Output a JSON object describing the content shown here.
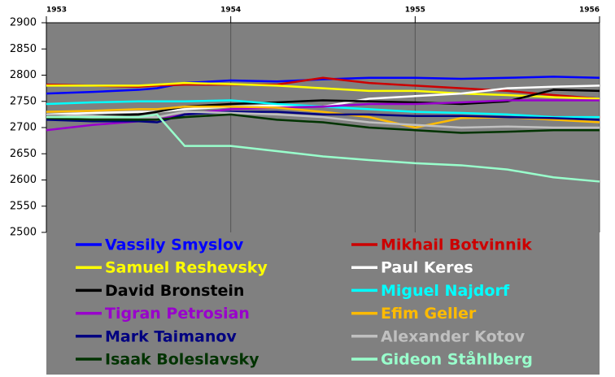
{
  "chart_data": {
    "type": "line",
    "x": [
      1953,
      1953.25,
      1953.5,
      1953.6,
      1953.75,
      1954,
      1954.25,
      1954.5,
      1954.75,
      1955,
      1955.25,
      1955.5,
      1955.75,
      1956
    ],
    "xlim": [
      1953,
      1956
    ],
    "xticks": [
      1953,
      1954,
      1955,
      1956
    ],
    "ylim": [
      2500,
      2900
    ],
    "yticks": [
      2500,
      2550,
      2600,
      2650,
      2700,
      2750,
      2800,
      2850,
      2900
    ],
    "grid": true,
    "plot_background": "#808080",
    "series": [
      {
        "name": "Vassily Smyslov",
        "color": "#0000ff",
        "values": [
          2765,
          2768,
          2772,
          2775,
          2785,
          2790,
          2788,
          2792,
          2795,
          2795,
          2793,
          2795,
          2797,
          2795
        ]
      },
      {
        "name": "Mikhail Botvinnik",
        "color": "#cc0000",
        "values": [
          2782,
          2780,
          2778,
          2780,
          2782,
          2782,
          2782,
          2795,
          2785,
          2780,
          2775,
          2770,
          2762,
          2755
        ]
      },
      {
        "name": "Samuel Reshevsky",
        "color": "#ffff00",
        "values": [
          2780,
          2780,
          2780,
          2782,
          2785,
          2783,
          2780,
          2775,
          2770,
          2770,
          2765,
          2762,
          2758,
          2755
        ]
      },
      {
        "name": "Paul Keres",
        "color": "#ffffff",
        "values": [
          2725,
          2728,
          2730,
          2730,
          2735,
          2740,
          2742,
          2740,
          2755,
          2760,
          2765,
          2775,
          2778,
          2780
        ]
      },
      {
        "name": "David Bronstein",
        "color": "#000000",
        "values": [
          2720,
          2722,
          2725,
          2730,
          2740,
          2745,
          2748,
          2752,
          2750,
          2748,
          2745,
          2750,
          2772,
          2770
        ]
      },
      {
        "name": "Miguel Najdorf",
        "color": "#00ffff",
        "values": [
          2745,
          2748,
          2750,
          2750,
          2750,
          2752,
          2745,
          2740,
          2735,
          2730,
          2728,
          2725,
          2720,
          2720
        ]
      },
      {
        "name": "Tigran Petrosian",
        "color": "#9900cc",
        "values": [
          2695,
          2705,
          2712,
          2715,
          2725,
          2735,
          2738,
          2740,
          2745,
          2745,
          2748,
          2752,
          2752,
          2752
        ]
      },
      {
        "name": "Efim Geller",
        "color": "#ffbb00",
        "values": [
          2730,
          2732,
          2735,
          2735,
          2740,
          2740,
          2738,
          2730,
          2720,
          2700,
          2718,
          2720,
          2715,
          2710
        ]
      },
      {
        "name": "Mark Taimanov",
        "color": "#000080",
        "values": [
          2715,
          2712,
          2712,
          2710,
          2725,
          2730,
          2730,
          2725,
          2725,
          2722,
          2722,
          2720,
          2718,
          2715
        ]
      },
      {
        "name": "Alexander Kotov",
        "color": "#c0c0c0",
        "values": [
          2725,
          2722,
          2720,
          2720,
          2730,
          2728,
          2725,
          2720,
          2710,
          2705,
          2700,
          2702,
          2700,
          2700
        ]
      },
      {
        "name": "Isaak Boleslavsky",
        "color": "#003300",
        "values": [
          2718,
          2715,
          2715,
          2715,
          2720,
          2725,
          2715,
          2710,
          2700,
          2695,
          2690,
          2692,
          2695,
          2695
        ]
      },
      {
        "name": "Gideon Ståhlberg",
        "color": "#99ffcc",
        "values": [
          2720,
          2720,
          2720,
          2725,
          2665,
          2665,
          2655,
          2645,
          2638,
          2632,
          2628,
          2620,
          2605,
          2597
        ]
      }
    ]
  }
}
